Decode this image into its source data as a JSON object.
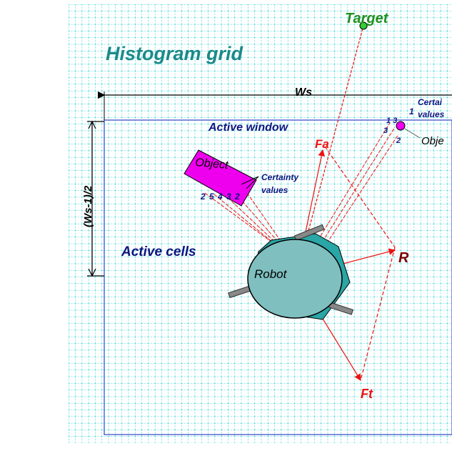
{
  "labels": {
    "title": "Histogram grid",
    "target": "Target",
    "ws": "Ws",
    "ws_half": "(Ws-1)/2",
    "active_window": "Active window",
    "active_cells": "Active cells",
    "robot": "Robot",
    "object_left": "Object",
    "object_right": "Obje",
    "certainty_left_line1": "Certainty",
    "certainty_left_line2": "values",
    "certainty_right_line1": "Certai",
    "certainty_right_line2": "values",
    "force_a": "Fa",
    "force_r": "R",
    "force_t": "Ft",
    "certainty_digits_left": "2 5 4 3 2",
    "certainty_digits_right_top": "1",
    "certainty_digits_right_a": "1 3",
    "certainty_digits_right_b": "3",
    "certainty_digits_right_c": "2"
  },
  "colors": {
    "grid": "#2fd0d0",
    "title": "#1a8a8a",
    "target_text": "#1f8f1f",
    "target_dot": "#33cc33",
    "dark_blue": "#0b1680",
    "window_line": "#3344cc",
    "object": "#ee00ee",
    "robot_fill": "#7fbfbf",
    "robot_back": "#2aa6a6",
    "red": "#ee1111",
    "dark_red": "#7a0000"
  }
}
